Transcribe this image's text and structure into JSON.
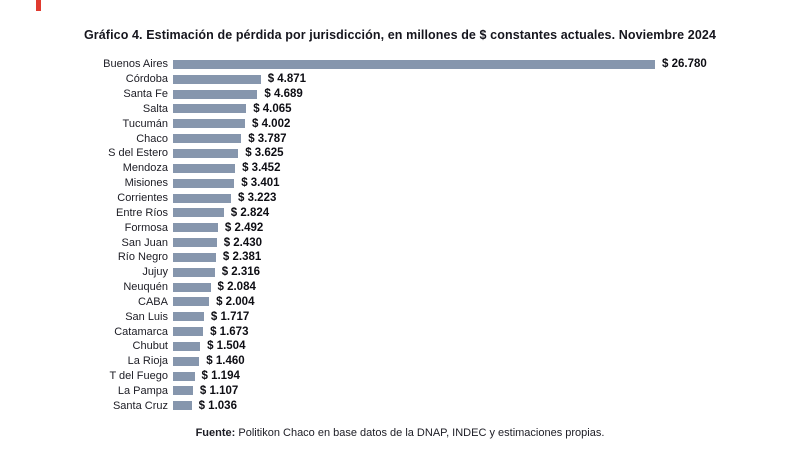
{
  "page": {
    "source_label": "Fuente:",
    "source_text": " Politikon Chaco en base datos de la DNAP, INDEC y estimaciones propias."
  },
  "chart_data": {
    "type": "bar",
    "orientation": "horizontal",
    "title": "Gráfico 4. Estimación de pérdida por jurisdicción, en millones de $ constantes actuales. Noviembre 2024",
    "xlabel": "",
    "ylabel": "",
    "legend": "none",
    "grid": false,
    "bar_color": "#8696ad",
    "value_label_color": "#0e0e14",
    "xlim": [
      0,
      26780
    ],
    "categories": [
      "Buenos Aires",
      "Córdoba",
      "Santa Fe",
      "Salta",
      "Tucumán",
      "Chaco",
      "S del Estero",
      "Mendoza",
      "Misiones",
      "Corrientes",
      "Entre Ríos",
      "Formosa",
      "San Juan",
      "Río Negro",
      "Jujuy",
      "Neuquén",
      "CABA",
      "San Luis",
      "Catamarca",
      "Chubut",
      "La Rioja",
      "T del Fuego",
      "La Pampa",
      "Santa Cruz"
    ],
    "values": [
      26780,
      4871,
      4689,
      4065,
      4002,
      3787,
      3625,
      3452,
      3401,
      3223,
      2824,
      2492,
      2430,
      2381,
      2316,
      2084,
      2004,
      1717,
      1673,
      1504,
      1460,
      1194,
      1107,
      1036
    ],
    "value_labels": [
      "$ 26.780",
      "$ 4.871",
      "$ 4.689",
      "$ 4.065",
      "$ 4.002",
      "$ 3.787",
      "$ 3.625",
      "$ 3.452",
      "$ 3.401",
      "$ 3.223",
      "$ 2.824",
      "$ 2.492",
      "$ 2.430",
      "$ 2.381",
      "$ 2.316",
      "$ 2.084",
      "$ 2.004",
      "$ 1.717",
      "$ 1.673",
      "$ 1.504",
      "$ 1.460",
      "$ 1.194",
      "$ 1.107",
      "$ 1.036"
    ]
  }
}
